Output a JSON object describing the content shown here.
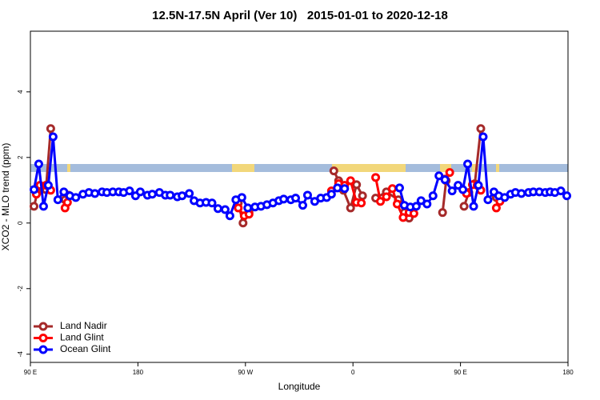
{
  "chart_data": {
    "type": "line",
    "title": "12.5N-17.5N April (Ver 10)   2015-01-01 to 2020-12-18",
    "x_label": "Longitude",
    "y_label": "XCO2 - MLO trend (ppm)",
    "xlim": [
      90,
      540
    ],
    "xticks": [
      {
        "value": 90,
        "label": "90 E"
      },
      180,
      {
        "value": 270,
        "label": "90 W"
      },
      {
        "value": 360,
        "label": "0"
      },
      {
        "value": 450,
        "label": "90 E"
      },
      {
        "value": 540,
        "label": "180"
      }
    ],
    "ylim": [
      -4.25,
      5.85
    ],
    "yticks": [
      -4,
      -2,
      0,
      2,
      4
    ],
    "legend": "bottom-left",
    "series": [
      {
        "name": "Land Nadir",
        "color": "#a52a2a",
        "x": [
          93,
          96,
          99,
          103,
          107,
          119,
          122,
          264,
          268,
          273,
          344,
          348,
          352,
          358,
          363,
          368,
          379,
          388,
          398,
          403,
          407,
          435,
          438,
          453,
          457,
          462,
          467,
          480,
          483
        ],
        "values": [
          0.51,
          0.95,
          1.12,
          1.02,
          2.88,
          0.71,
          0.85,
          0.61,
          0.0,
          0.32,
          1.59,
          1.29,
          1.0,
          0.46,
          1.17,
          0.83,
          0.76,
          0.95,
          0.71,
          0.32,
          0.15,
          0.32,
          1.29,
          0.51,
          0.93,
          1.2,
          2.88,
          0.78,
          0.8
        ]
      },
      {
        "name": "Land Glint",
        "color": "#ff0000",
        "x": [
          95,
          98,
          103,
          107,
          119,
          121,
          264,
          269,
          273,
          342,
          348,
          353,
          358,
          363,
          367,
          379,
          383,
          388,
          393,
          397,
          402,
          407,
          411,
          437,
          441,
          455,
          460,
          464,
          467,
          480,
          483
        ],
        "values": [
          0.88,
          1.15,
          1.15,
          1.0,
          0.46,
          0.63,
          0.46,
          0.22,
          0.27,
          0.98,
          1.2,
          1.15,
          1.29,
          0.63,
          0.61,
          1.39,
          0.66,
          0.8,
          1.05,
          0.58,
          0.17,
          0.32,
          0.29,
          1.34,
          1.54,
          0.9,
          1.17,
          1.15,
          1.0,
          0.46,
          0.66
        ]
      },
      {
        "name": "Ocean Glint",
        "color": "#0000ff",
        "x": [
          93,
          97,
          101,
          105,
          109,
          113,
          118,
          123,
          128,
          134,
          139,
          144,
          150,
          154,
          159,
          164,
          168,
          173,
          178,
          182,
          188,
          192,
          198,
          203,
          207,
          213,
          217,
          223,
          227,
          232,
          237,
          242,
          247,
          253,
          257,
          262,
          267,
          272,
          278,
          283,
          288,
          293,
          298,
          302,
          308,
          312,
          318,
          322,
          328,
          333,
          338,
          342,
          347,
          353,
          399,
          403,
          408,
          413,
          417,
          422,
          427,
          432,
          437,
          443,
          448,
          452,
          456,
          461,
          465,
          469,
          473,
          478,
          482,
          487,
          492,
          496,
          501,
          507,
          511,
          516,
          521,
          525,
          529,
          534,
          539
        ],
        "values": [
          1.02,
          1.8,
          0.51,
          1.15,
          2.63,
          0.71,
          0.95,
          0.83,
          0.78,
          0.88,
          0.93,
          0.9,
          0.95,
          0.93,
          0.95,
          0.95,
          0.93,
          0.98,
          0.83,
          0.95,
          0.85,
          0.88,
          0.93,
          0.85,
          0.85,
          0.8,
          0.83,
          0.9,
          0.68,
          0.61,
          0.63,
          0.61,
          0.44,
          0.41,
          0.22,
          0.71,
          0.78,
          0.46,
          0.49,
          0.51,
          0.56,
          0.61,
          0.68,
          0.73,
          0.71,
          0.76,
          0.54,
          0.85,
          0.66,
          0.76,
          0.78,
          0.88,
          1.07,
          1.05,
          1.07,
          0.54,
          0.49,
          0.51,
          0.68,
          0.58,
          0.83,
          1.44,
          1.32,
          0.98,
          1.15,
          1.02,
          1.8,
          0.51,
          1.15,
          2.63,
          0.71,
          0.95,
          0.83,
          0.78,
          0.88,
          0.93,
          0.9,
          0.93,
          0.95,
          0.95,
          0.93,
          0.95,
          0.93,
          0.98,
          0.83
        ]
      }
    ]
  }
}
